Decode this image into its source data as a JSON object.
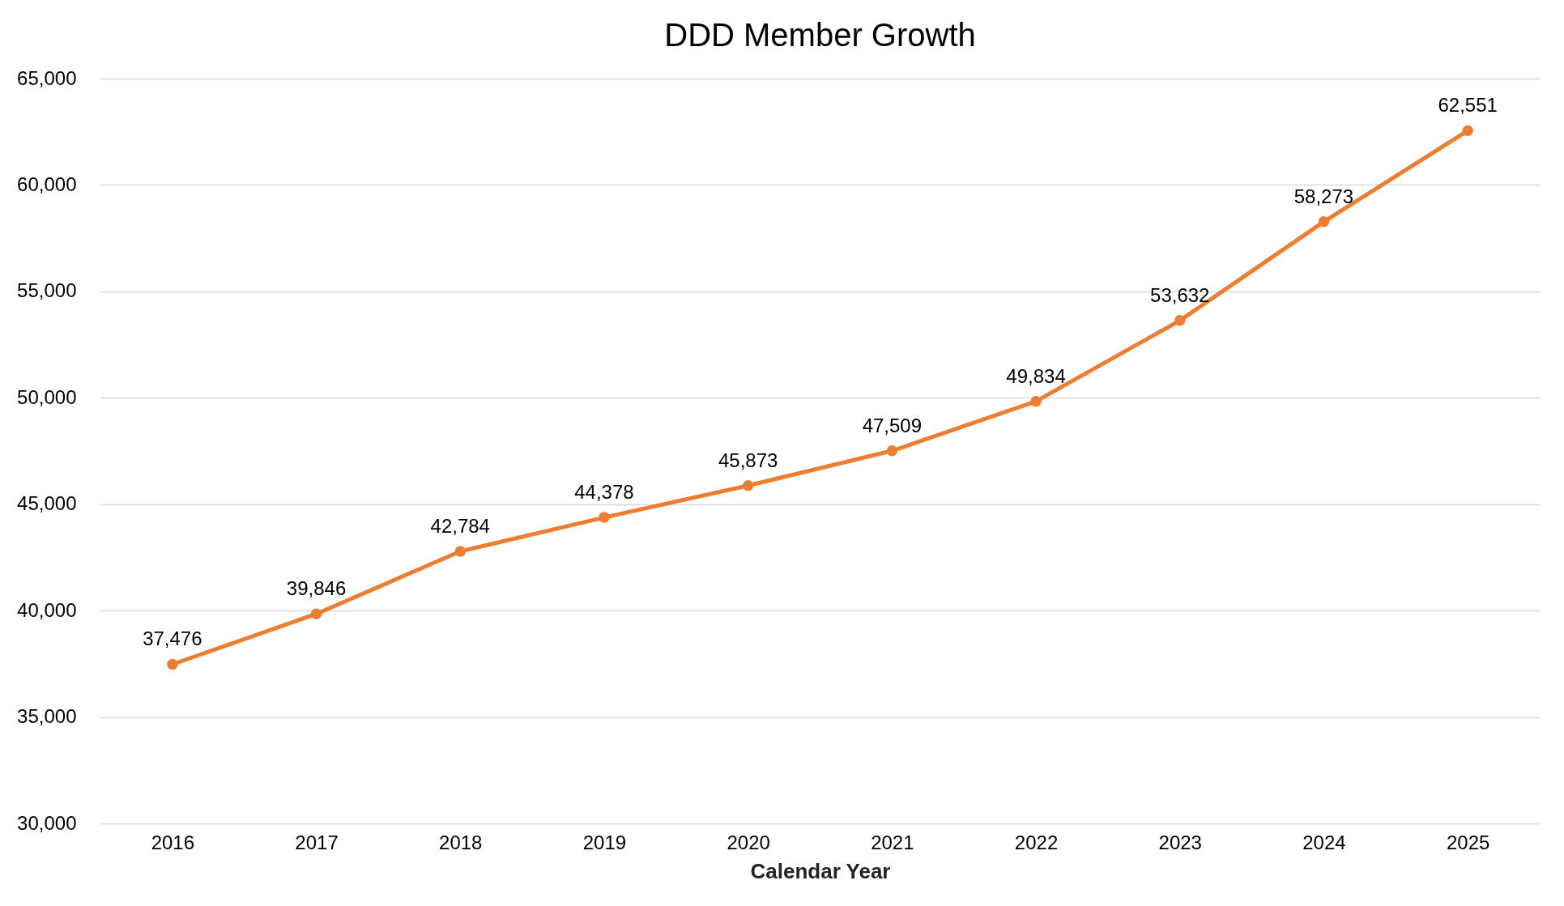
{
  "chart_data": {
    "type": "line",
    "title": "DDD Member Growth",
    "xlabel": "Calendar Year",
    "categories": [
      "2016",
      "2017",
      "2018",
      "2019",
      "2020",
      "2021",
      "2022",
      "2023",
      "2024",
      "2025"
    ],
    "series": [
      {
        "color": "#ed7d31",
        "values": [
          37476,
          39846,
          42784,
          44378,
          45873,
          47509,
          49834,
          53632,
          58273,
          62551
        ],
        "value_labels": [
          "37,476",
          "39,846",
          "42,784",
          "44,378",
          "45,873",
          "47,509",
          "49,834",
          "53,632",
          "58,273",
          "62,551"
        ]
      }
    ],
    "ylim": [
      30000,
      65000
    ],
    "yticks": [
      {
        "value": 30000,
        "label": "30,000"
      },
      {
        "value": 35000,
        "label": "35,000"
      },
      {
        "value": 40000,
        "label": "40,000"
      },
      {
        "value": 45000,
        "label": "45,000"
      },
      {
        "value": 50000,
        "label": "50,000"
      },
      {
        "value": 55000,
        "label": "55,000"
      },
      {
        "value": 60000,
        "label": "60,000"
      },
      {
        "value": 65000,
        "label": "65,000"
      }
    ],
    "grid": "y",
    "marker": "circle",
    "line_style": "solid"
  }
}
